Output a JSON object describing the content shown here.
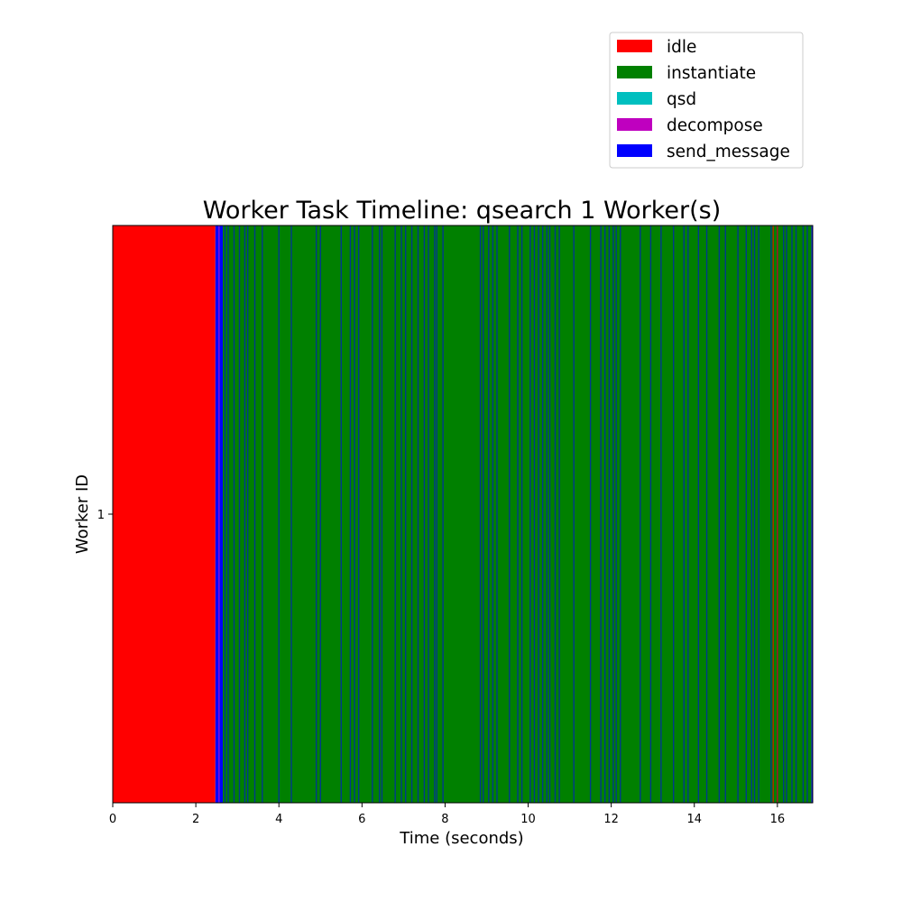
{
  "chart_data": {
    "type": "bar",
    "orientation": "horizontal-timeline",
    "title": "Worker Task Timeline: qsearch 1 Worker(s)",
    "xlabel": "Time (seconds)",
    "ylabel": "Worker ID",
    "xlim": [
      0,
      16.85
    ],
    "xticks": [
      "0",
      "2",
      "4",
      "6",
      "8",
      "10",
      "12",
      "14",
      "16"
    ],
    "yticks": [
      "1"
    ],
    "grid": false,
    "legend_position": "upper-right, above plot",
    "legend": [
      {
        "label": "idle",
        "color": "#ff0000"
      },
      {
        "label": "instantiate",
        "color": "#008000"
      },
      {
        "label": "qsd",
        "color": "#00bfbf"
      },
      {
        "label": "decompose",
        "color": "#bf00bf"
      },
      {
        "label": "send_message",
        "color": "#0000ff"
      }
    ],
    "workers": [
      {
        "id": "1",
        "segments": [
          {
            "task": "idle",
            "start": 0,
            "end": 2.47
          },
          {
            "task": "send_message",
            "start": 2.47,
            "end": 2.55
          },
          {
            "task": "decompose",
            "start": 2.55,
            "end": 2.57
          },
          {
            "task": "send_message",
            "start": 2.57,
            "end": 2.65
          },
          {
            "task": "instantiate",
            "start": 2.65,
            "end": 16.82
          },
          {
            "task": "send_message",
            "start": 16.82,
            "end": 16.85
          }
        ],
        "send_message_markers": [
          2.7,
          2.78,
          2.92,
          3.05,
          3.18,
          3.25,
          3.42,
          3.6,
          4.0,
          4.3,
          4.9,
          5.0,
          5.5,
          5.72,
          5.82,
          5.92,
          6.25,
          6.42,
          6.48,
          6.8,
          6.95,
          7.05,
          7.2,
          7.35,
          7.5,
          7.6,
          7.75,
          7.8,
          7.95,
          8.85,
          8.92,
          9.05,
          9.15,
          9.25,
          9.55,
          9.75,
          9.85,
          10.05,
          10.15,
          10.25,
          10.35,
          10.45,
          10.52,
          10.65,
          10.75,
          11.1,
          11.5,
          11.75,
          11.85,
          11.95,
          12.05,
          12.12,
          12.22,
          12.7,
          12.95,
          13.2,
          13.5,
          13.75,
          13.85,
          14.1,
          14.3,
          14.6,
          14.75,
          15.05,
          15.25,
          15.38,
          15.45,
          15.55,
          15.85,
          16.0,
          16.15,
          16.22,
          16.35,
          16.45,
          16.62,
          16.72
        ],
        "idle_markers": [
          15.9,
          16.0
        ]
      }
    ]
  }
}
